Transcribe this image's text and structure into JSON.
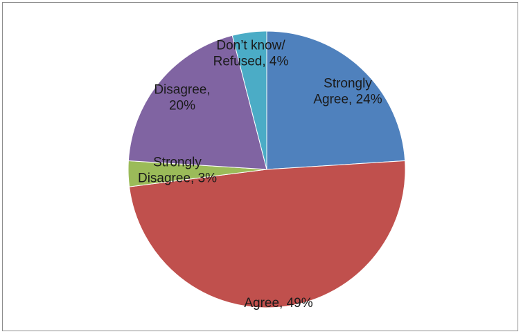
{
  "chart_data": {
    "type": "pie",
    "title": "",
    "slices": [
      {
        "label": "Strongly Agree",
        "value": 24,
        "display": "24%",
        "color": "#4f81bd",
        "label_lines": [
          "Strongly",
          "Agree, 24%"
        ]
      },
      {
        "label": "Agree",
        "value": 49,
        "display": "49%",
        "color": "#c0504d",
        "label_lines": [
          "Agree, 49%"
        ]
      },
      {
        "label": "Strongly Disagree",
        "value": 3,
        "display": "3%",
        "color": "#9bbb59",
        "label_lines": [
          "Strongly",
          "Disagree, 3%"
        ]
      },
      {
        "label": "Disagree",
        "value": 20,
        "display": "20%",
        "color": "#8064a2",
        "label_lines": [
          "Disagree,",
          "20%"
        ]
      },
      {
        "label": "Don’t know/ Refused",
        "value": 4,
        "display": "4%",
        "color": "#4bacc6",
        "label_lines": [
          "Don’t know/",
          "Refused, 4%"
        ]
      }
    ],
    "start_angle_deg": 0,
    "direction": "clockwise",
    "legend": "none"
  }
}
